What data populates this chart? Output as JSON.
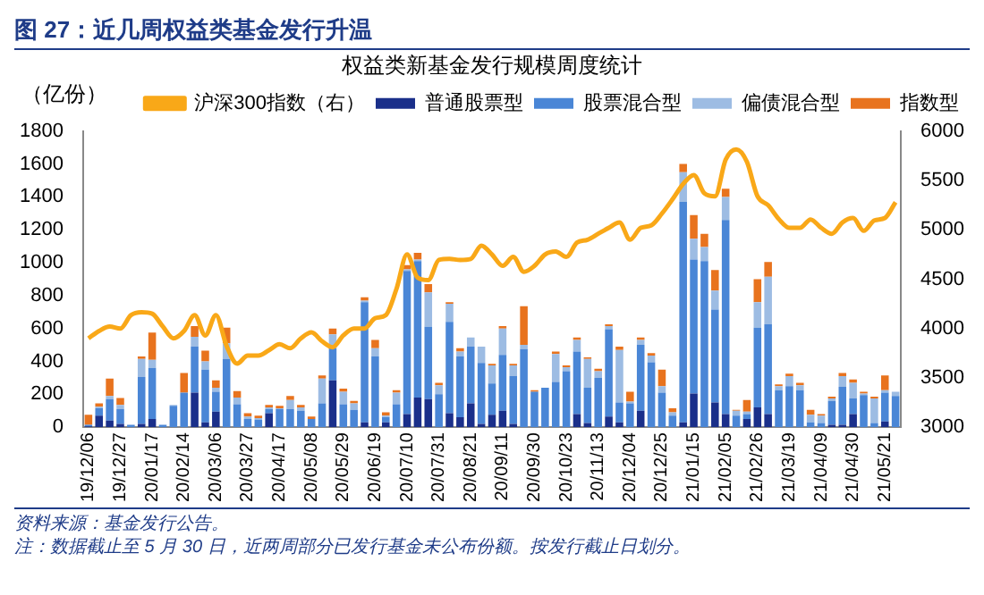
{
  "chart_data": {
    "type": "bar",
    "title": "图 27：近几周权益类基金发行升温",
    "subtitle": "权益类新基金发行规模周度统计",
    "ylabel": "（亿份）",
    "annotations": [
      "资料来源：基金发行公告。",
      "注：数据截止至 5 月 30 日，近两周部分已发行基金未公布份额。按发行截止日划分。"
    ],
    "categories": [
      "19/12/06",
      null,
      null,
      "19/12/27",
      null,
      null,
      "20/01/17",
      null,
      null,
      "20/02/14",
      null,
      null,
      "20/03/06",
      null,
      null,
      "20/03/27",
      null,
      null,
      "20/04/17",
      null,
      null,
      "20/05/08",
      null,
      null,
      "20/05/29",
      null,
      null,
      "20/06/19",
      null,
      null,
      "20/07/10",
      null,
      null,
      "20/07/31",
      null,
      null,
      "20/08/21",
      null,
      null,
      "20/09/11",
      null,
      null,
      "20/09/30",
      null,
      null,
      "20/10/23",
      null,
      null,
      "20/11/13",
      null,
      null,
      "20/12/04",
      null,
      null,
      "20/12/25",
      null,
      null,
      "21/01/15",
      null,
      null,
      "21/02/05",
      null,
      null,
      "21/02/26",
      null,
      null,
      "21/03/19",
      null,
      null,
      "21/04/09",
      null,
      null,
      "21/04/30",
      null,
      null,
      "21/05/21",
      null
    ],
    "series": [
      {
        "name": "普通股票型",
        "color": "#1a2f8a",
        "values": [
          5,
          70,
          40,
          20,
          0,
          20,
          50,
          0,
          0,
          0,
          210,
          30,
          95,
          0,
          0,
          0,
          0,
          85,
          0,
          0,
          0,
          0,
          0,
          285,
          0,
          0,
          30,
          0,
          30,
          0,
          80,
          180,
          170,
          0,
          85,
          60,
          145,
          20,
          75,
          100,
          20,
          0,
          0,
          0,
          0,
          0,
          80,
          25,
          0,
          65,
          30,
          0,
          100,
          0,
          0,
          0,
          30,
          205,
          0,
          150,
          80,
          0,
          50,
          120,
          80,
          0,
          0,
          0,
          0,
          0,
          15,
          15,
          80,
          0,
          0,
          35,
          0
        ]
      },
      {
        "name": "股票混合型",
        "color": "#4a86d6",
        "values": [
          10,
          45,
          130,
          90,
          15,
          285,
          310,
          15,
          130,
          210,
          280,
          320,
          120,
          415,
          140,
          50,
          45,
          25,
          110,
          110,
          100,
          50,
          145,
          195,
          140,
          105,
          730,
          430,
          30,
          140,
          870,
          830,
          440,
          200,
          555,
          370,
          345,
          370,
          190,
          340,
          290,
          475,
          215,
          240,
          275,
          340,
          380,
          215,
          300,
          530,
          120,
          145,
          400,
          395,
          210,
          70,
          1340,
          815,
          1010,
          565,
          1180,
          70,
          30,
          485,
          545,
          225,
          250,
          225,
          30,
          25,
          145,
          230,
          95,
          195,
          25,
          175,
          190
        ]
      },
      {
        "name": "偏债混合型",
        "color": "#9dbce3",
        "values": [
          0,
          10,
          20,
          25,
          0,
          110,
          50,
          0,
          5,
          0,
          60,
          50,
          25,
          95,
          40,
          15,
          10,
          10,
          5,
          55,
          20,
          0,
          150,
          85,
          75,
          40,
          10,
          50,
          10,
          70,
          10,
          10,
          210,
          55,
          110,
          30,
          55,
          100,
          110,
          160,
          65,
          25,
          0,
          0,
          170,
          25,
          70,
          175,
          40,
          20,
          320,
          10,
          30,
          40,
          40,
          20,
          180,
          125,
          85,
          115,
          140,
          30,
          15,
          155,
          290,
          25,
          60,
          30,
          45,
          45,
          15,
          65,
          95,
          10,
          150,
          15,
          25
        ]
      },
      {
        "name": "指数型",
        "color": "#e8731e",
        "values": [
          60,
          20,
          105,
          43,
          0,
          15,
          165,
          0,
          0,
          120,
          65,
          65,
          45,
          95,
          40,
          20,
          15,
          15,
          15,
          25,
          15,
          15,
          20,
          35,
          20,
          15,
          20,
          50,
          20,
          15,
          25,
          40,
          50,
          15,
          10,
          20,
          0,
          0,
          10,
          15,
          10,
          235,
          10,
          0,
          15,
          10,
          15,
          10,
          15,
          10,
          20,
          60,
          15,
          15,
          100,
          25,
          50,
          145,
          80,
          125,
          50,
          5,
          70,
          140,
          90,
          10,
          15,
          15,
          30,
          10,
          10,
          20,
          20,
          10,
          10,
          90,
          0
        ]
      },
      {
        "name": "沪深300指数（右）",
        "type": "line",
        "axis": "y2",
        "color": "#f9a818",
        "values": [
          3900,
          3975,
          4020,
          4000,
          4135,
          4165,
          4150,
          4020,
          3900,
          3975,
          4135,
          3930,
          4135,
          3825,
          3645,
          3725,
          3725,
          3780,
          3840,
          3800,
          3900,
          3960,
          3870,
          3810,
          3930,
          4000,
          4000,
          4105,
          4135,
          4400,
          4750,
          4515,
          4490,
          4695,
          4705,
          4695,
          4705,
          4840,
          4750,
          4635,
          4725,
          4575,
          4635,
          4750,
          4780,
          4725,
          4870,
          4900,
          4960,
          5020,
          5075,
          4900,
          5020,
          5045,
          5165,
          5310,
          5465,
          5555,
          5370,
          5340,
          5710,
          5815,
          5690,
          5340,
          5250,
          5110,
          5020,
          5020,
          5105,
          5020,
          4960,
          5075,
          5120,
          4990,
          5095,
          5120,
          5280
        ]
      }
    ],
    "stacked": true,
    "ylim": [
      0,
      1800
    ],
    "yticks": [
      0,
      200,
      400,
      600,
      800,
      1000,
      1200,
      1400,
      1600,
      1800
    ],
    "y2lim": [
      3000,
      6000
    ],
    "y2ticks": [
      3000,
      3500,
      4000,
      4500,
      5000,
      5500,
      6000
    ],
    "legend": "top",
    "grid": false,
    "marker": "none"
  }
}
